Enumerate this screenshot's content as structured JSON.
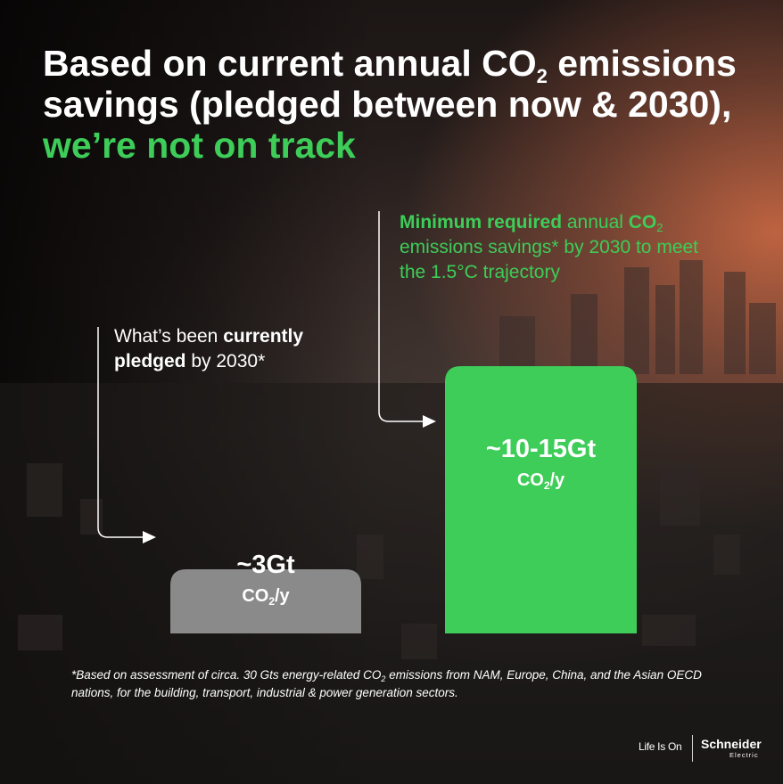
{
  "title": {
    "part1": "Based on current annual CO",
    "sub": "2",
    "part2": " emissions savings (pledged between now & 2030), ",
    "accent": "we’re not on track"
  },
  "callout_required": {
    "bold": "Minimum required",
    "text1": " annual ",
    "co": "CO",
    "sub": "2",
    "text2": " emissions savings* by 2030 to meet the 1.5°C trajectory"
  },
  "callout_pledged": {
    "text1": "What’s been ",
    "bold": "currently pledged",
    "text2": " by 2030*"
  },
  "chart_data": {
    "type": "bar",
    "categories": [
      "What’s been currently pledged by 2030*",
      "Minimum required annual CO2 emissions savings* by 2030 to meet the 1.5°C trajectory"
    ],
    "values": [
      3,
      12.5
    ],
    "value_ranges": [
      [
        3,
        3
      ],
      [
        10,
        15
      ]
    ],
    "data_labels": [
      "~3Gt",
      "~10-15Gt"
    ],
    "unit": "CO2/y",
    "unit_parts": {
      "pre": "CO",
      "sub": "2",
      "post": "/y"
    },
    "colors": [
      "#8a8a8a",
      "#3dcd58"
    ],
    "ylim": [
      0,
      15
    ]
  },
  "footnote": {
    "pre": "*Based on assessment of circa. 30 Gts energy-related CO",
    "sub": "2",
    "post": " emissions from NAM, Europe, China, and the Asian OECD nations, for the building, transport, industrial & power generation sectors."
  },
  "brand": {
    "tagline": "Life Is On",
    "name": "Schneider",
    "sub": "Electric"
  }
}
